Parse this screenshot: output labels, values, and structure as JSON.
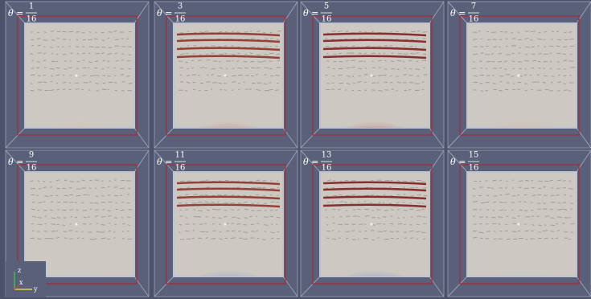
{
  "figure": {
    "theta_label": "θ =",
    "axes_labels": [
      "z",
      "x",
      "y"
    ],
    "panels": [
      {
        "numerator": "1",
        "denominator": "16",
        "blob_color": "#e9b89c",
        "band_color": null
      },
      {
        "numerator": "3",
        "denominator": "16",
        "blob_color": "#c8402c",
        "band_color": "#8a2a20"
      },
      {
        "numerator": "5",
        "denominator": "16",
        "blob_color": "#b52418",
        "band_color": "#7a1414"
      },
      {
        "numerator": "7",
        "denominator": "16",
        "blob_color": "#e39a78",
        "band_color": null
      },
      {
        "numerator": "9",
        "denominator": "16",
        "blob_color": "#b9c6e2",
        "band_color": null
      },
      {
        "numerator": "11",
        "denominator": "16",
        "blob_color": "#4a6ed0",
        "band_color": "#8a2a20"
      },
      {
        "numerator": "13",
        "denominator": "16",
        "blob_color": "#3a5cc4",
        "band_color": "#7a1414"
      },
      {
        "numerator": "15",
        "denominator": "16",
        "blob_color": "#a0b4e0",
        "band_color": null
      }
    ]
  }
}
